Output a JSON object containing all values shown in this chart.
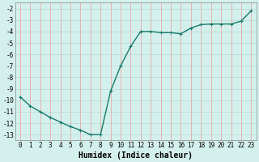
{
  "x": [
    0,
    1,
    2,
    3,
    4,
    5,
    6,
    7,
    8,
    9,
    10,
    11,
    12,
    13,
    14,
    15,
    16,
    17,
    18,
    19,
    20,
    21,
    22,
    23
  ],
  "y": [
    -9.7,
    -10.5,
    -11.0,
    -11.5,
    -11.9,
    -12.3,
    -12.6,
    -13.0,
    -13.0,
    -9.2,
    -7.0,
    -5.3,
    -4.0,
    -4.0,
    -4.1,
    -4.1,
    -4.2,
    -3.7,
    -3.4,
    -3.35,
    -3.35,
    -3.35,
    -3.1,
    -2.2
  ],
  "line_color": "#1a7a6a",
  "marker": "+",
  "marker_size": 3,
  "bg_color": "#d4f0ec",
  "grid_color_h": "#b8ddd8",
  "grid_color_v": "#e8aaaa",
  "xlabel": "Humidex (Indice chaleur)",
  "xlabel_fontsize": 7,
  "ylim": [
    -13.5,
    -1.5
  ],
  "xlim": [
    -0.5,
    23.5
  ],
  "yticks": [
    -2,
    -3,
    -4,
    -5,
    -6,
    -7,
    -8,
    -9,
    -10,
    -11,
    -12,
    -13
  ],
  "xticks": [
    0,
    1,
    2,
    3,
    4,
    5,
    6,
    7,
    8,
    9,
    10,
    11,
    12,
    13,
    14,
    15,
    16,
    17,
    18,
    19,
    20,
    21,
    22,
    23
  ],
  "tick_fontsize": 5.5,
  "line_width": 1.0
}
